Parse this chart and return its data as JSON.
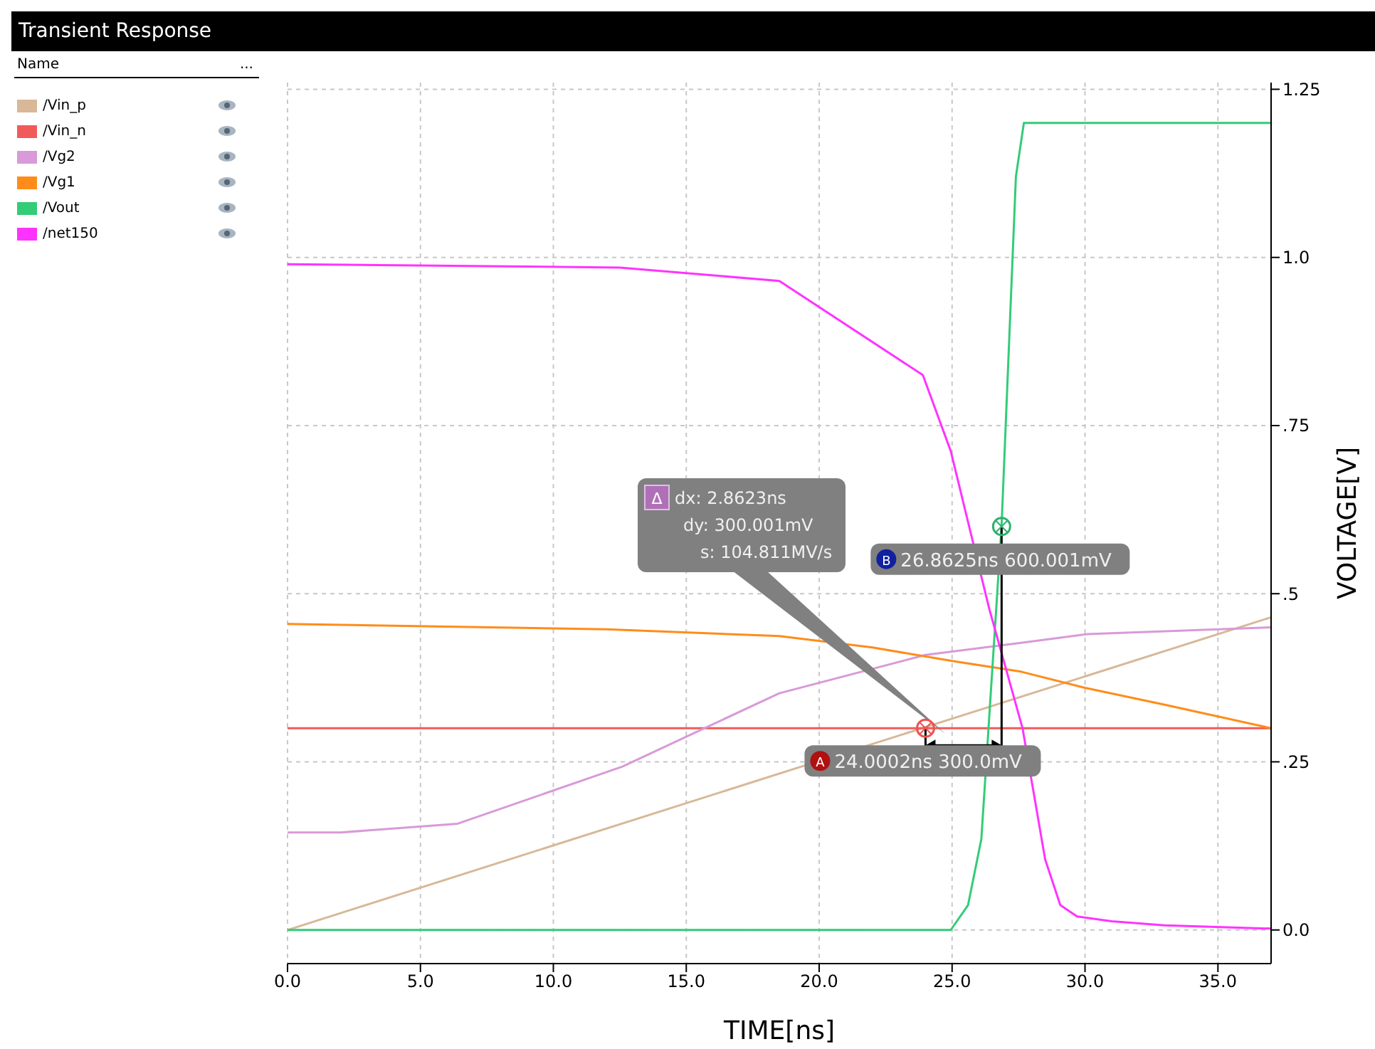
{
  "chart_data": {
    "type": "line",
    "title": "Transient Response",
    "xlabel": "TIME[ns]",
    "ylabel": "VOLTAGE[V]",
    "legend_title": "Name",
    "xlim": [
      0,
      37
    ],
    "ylim": [
      -0.05,
      1.26
    ],
    "xticks": [
      {
        "value": 0,
        "label": "0.0"
      },
      {
        "value": 5,
        "label": "5.0"
      },
      {
        "value": 10,
        "label": "10.0"
      },
      {
        "value": 15,
        "label": "15.0"
      },
      {
        "value": 20,
        "label": "20.0"
      },
      {
        "value": 25,
        "label": "25.0"
      },
      {
        "value": 30,
        "label": "30.0"
      },
      {
        "value": 35,
        "label": "35.0"
      }
    ],
    "yticks": [
      {
        "value": 0,
        "label": "0.0"
      },
      {
        "value": 0.25,
        "label": ".25"
      },
      {
        "value": 0.5,
        "label": ".5"
      },
      {
        "value": 0.75,
        "label": ".75"
      },
      {
        "value": 1,
        "label": "1.0"
      },
      {
        "value": 1.25,
        "label": "1.25"
      }
    ],
    "grid": true,
    "legend": "left",
    "marker": "none",
    "line_style": "solid",
    "series": [
      {
        "name": "/Vin_p",
        "color": "#d8b898",
        "x": [
          0,
          37
        ],
        "values": [
          0,
          0.465
        ]
      },
      {
        "name": "/Vin_n",
        "color": "#f25a5a",
        "x": [
          0,
          37
        ],
        "values": [
          0.3,
          0.3
        ]
      },
      {
        "name": "/Vg2",
        "color": "#d89ad8",
        "x": [
          0,
          2,
          6.4,
          12.6,
          18.5,
          24,
          27.6,
          30.1,
          37
        ],
        "values": [
          0.145,
          0.145,
          0.158,
          0.243,
          0.352,
          0.409,
          0.427,
          0.44,
          0.45
        ]
      },
      {
        "name": "/Vg1",
        "color": "#ff8c1a",
        "x": [
          0,
          6,
          12,
          18.5,
          22,
          25,
          27.6,
          30,
          33,
          37
        ],
        "values": [
          0.455,
          0.451,
          0.447,
          0.437,
          0.42,
          0.4,
          0.384,
          0.36,
          0.335,
          0.3
        ]
      },
      {
        "name": "/Vout",
        "color": "#33cc77",
        "x": [
          0,
          24.95,
          25.6,
          26.1,
          26.86,
          27.4,
          27.7,
          28,
          37
        ],
        "values": [
          0,
          0,
          0.037,
          0.135,
          0.6,
          1.12,
          1.2,
          1.2,
          1.2
        ]
      },
      {
        "name": "/net150",
        "color": "#ff33ff",
        "x": [
          0,
          12.5,
          18.5,
          23.9,
          24.95,
          26.4,
          27.65,
          28.5,
          29.07,
          29.7,
          31,
          33,
          37
        ],
        "values": [
          0.99,
          0.985,
          0.965,
          0.825,
          0.712,
          0.477,
          0.3,
          0.105,
          0.037,
          0.02,
          0.013,
          0.007,
          0.002
        ]
      }
    ],
    "annotations": [
      {
        "text": "24.0002ns 300.0mV",
        "x": 24.0002,
        "y": 0.3
      },
      {
        "text": "26.8625ns 600.001mV",
        "x": 26.8625,
        "y": 0.6
      },
      "dx: 2.8623ns",
      "dy: 300.001mV",
      "s: 104.811MV/s",
      "A",
      "B",
      "Δ",
      "..."
    ]
  }
}
